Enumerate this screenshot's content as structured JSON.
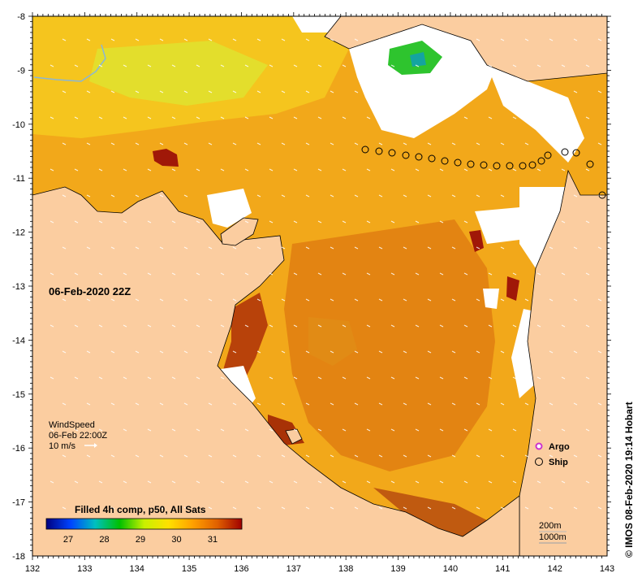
{
  "map": {
    "date_label": "06-Feb-2020 22Z",
    "credit": "© IMOS 08-Feb-2020 19:14 Hobart",
    "lon_ticks": [
      "132",
      "133",
      "134",
      "135",
      "136",
      "137",
      "138",
      "139",
      "140",
      "141",
      "142",
      "143"
    ],
    "lat_ticks": [
      "-8",
      "-9",
      "-10",
      "-11",
      "-12",
      "-13",
      "-14",
      "-15",
      "-16",
      "-17",
      "-18"
    ]
  },
  "wind": {
    "title": "WindSpeed",
    "time": "06-Feb 22:00Z",
    "scale_label": "10 m/s"
  },
  "legend": {
    "argo_label": "Argo",
    "ship_label": "Ship",
    "argo_color": "#cc33cc"
  },
  "colorbar": {
    "title": "Filled 4h comp, p50, All Sats",
    "ticks": [
      "27",
      "28",
      "29",
      "30",
      "31"
    ],
    "stops": [
      "#000080",
      "#0044ff",
      "#00c0c0",
      "#00c000",
      "#c8f000",
      "#ffe000",
      "#ffa000",
      "#e06000",
      "#a00000"
    ]
  },
  "depth_contours": {
    "line1": "200m",
    "line2": "1000m"
  },
  "colors": {
    "land": "#fbcda0",
    "sea_warm": "#f0a010",
    "sea_hot": "#c04000",
    "cloud": "#ffffff"
  }
}
